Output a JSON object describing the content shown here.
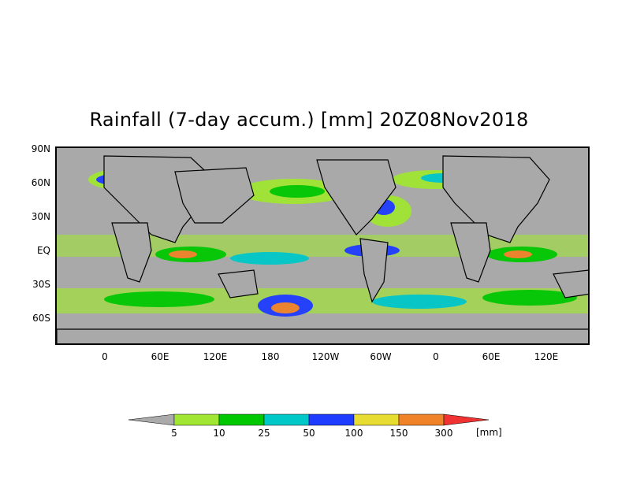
{
  "title": "Rainfall (7-day accum.) [mm] 20Z08Nov2018",
  "map": {
    "lat_labels": [
      "90N",
      "60N",
      "30N",
      "EQ",
      "30S",
      "60S"
    ],
    "lon_labels": [
      "0",
      "60E",
      "120E",
      "180",
      "120W",
      "60W",
      "0",
      "60E",
      "120E"
    ],
    "ocean_no_rain_color": "#a9a9a9",
    "coastline_color": "#000000"
  },
  "legend": {
    "thresholds": [
      "5",
      "10",
      "25",
      "50",
      "100",
      "150",
      "300"
    ],
    "unit": "[mm]",
    "colors": [
      "#aaaaaa",
      "#a0e632",
      "#00c800",
      "#00c8c8",
      "#1e3cff",
      "#e6dc32",
      "#f08228",
      "#f03232"
    ]
  }
}
